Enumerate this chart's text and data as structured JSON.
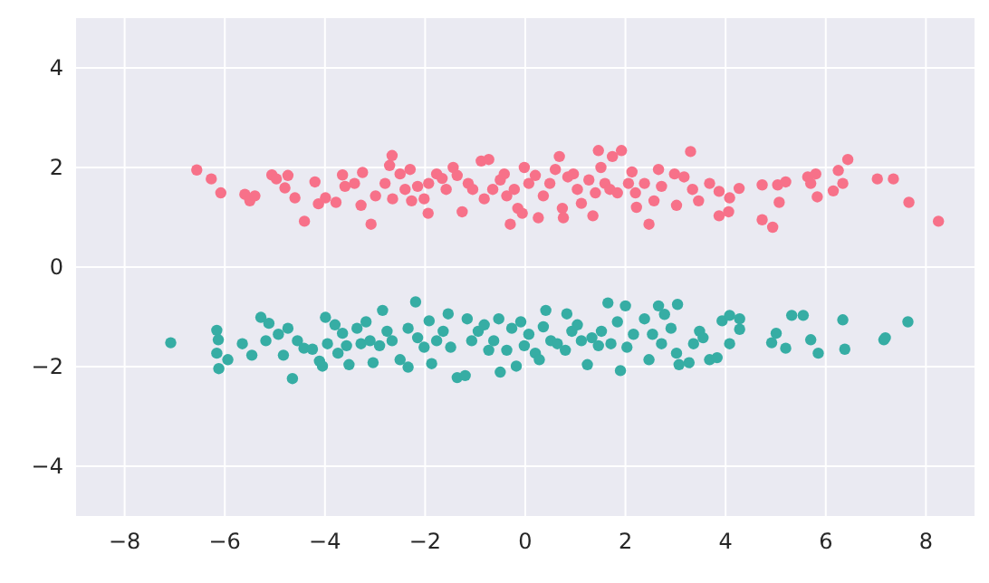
{
  "chart_data": {
    "type": "scatter",
    "xlim": [
      -8.97,
      8.97
    ],
    "ylim": [
      -5,
      5
    ],
    "xticks": [
      {
        "value": -8,
        "label": "−8"
      },
      {
        "value": -6,
        "label": "−6"
      },
      {
        "value": -4,
        "label": "−4"
      },
      {
        "value": -2,
        "label": "−2"
      },
      0,
      2,
      4,
      6,
      8
    ],
    "yticks": [
      {
        "value": -4,
        "label": "−4"
      },
      {
        "value": -2,
        "label": "−2"
      },
      0,
      2,
      4
    ],
    "grid": true,
    "marker": "circle",
    "series": [
      {
        "color": "#f77189",
        "x": [
          -6.56,
          -6.27,
          -6.08,
          -5.6,
          -5.5,
          -5.4,
          -5.06,
          -4.97,
          -4.74,
          -4.8,
          -4.6,
          -4.41,
          -4.2,
          -4.13,
          -3.99,
          -3.78,
          -3.65,
          -3.6,
          -3.41,
          -3.25,
          -3.28,
          -3.08,
          -2.99,
          -2.8,
          -2.71,
          -2.66,
          -2.65,
          -2.5,
          -2.4,
          -2.3,
          -2.27,
          -2.15,
          -2.02,
          -1.94,
          -1.93,
          -1.77,
          -1.66,
          -1.58,
          -1.44,
          -1.36,
          -1.26,
          -1.14,
          -1.05,
          -0.88,
          -0.73,
          -0.82,
          -0.65,
          -0.5,
          -0.42,
          -0.37,
          -0.3,
          -0.22,
          -0.15,
          -0.06,
          -0.02,
          0.07,
          0.2,
          0.26,
          0.36,
          0.49,
          0.6,
          0.68,
          0.74,
          0.76,
          0.85,
          0.96,
          1.04,
          1.12,
          1.27,
          1.35,
          1.4,
          1.46,
          1.51,
          1.59,
          1.69,
          1.74,
          1.84,
          1.92,
          2.06,
          2.13,
          2.2,
          2.22,
          2.38,
          2.47,
          2.57,
          2.66,
          2.72,
          2.98,
          3.02,
          3.17,
          3.3,
          3.34,
          3.46,
          3.68,
          3.87,
          3.87,
          4.06,
          4.08,
          4.27,
          4.73,
          4.73,
          4.94,
          5.04,
          5.07,
          5.2,
          5.64,
          5.7,
          5.8,
          5.83,
          6.15,
          6.25,
          6.34,
          6.44,
          7.03,
          7.35,
          7.66,
          8.25
        ],
        "values": [
          1.95,
          1.77,
          1.49,
          1.46,
          1.33,
          1.43,
          1.85,
          1.77,
          1.84,
          1.59,
          1.39,
          0.92,
          1.71,
          1.27,
          1.39,
          1.3,
          1.85,
          1.62,
          1.68,
          1.9,
          1.24,
          0.86,
          1.43,
          1.68,
          2.04,
          2.24,
          1.37,
          1.87,
          1.56,
          1.96,
          1.33,
          1.62,
          1.37,
          1.08,
          1.68,
          1.87,
          1.78,
          1.56,
          2.0,
          1.84,
          1.11,
          1.68,
          1.56,
          2.13,
          2.16,
          1.37,
          1.56,
          1.75,
          1.87,
          1.43,
          0.86,
          1.56,
          1.18,
          1.08,
          2.0,
          1.68,
          1.84,
          0.99,
          1.43,
          1.68,
          1.96,
          2.22,
          1.18,
          0.99,
          1.81,
          1.87,
          1.56,
          1.28,
          1.75,
          1.03,
          1.49,
          2.34,
          2.0,
          1.68,
          1.56,
          2.22,
          1.49,
          2.34,
          1.68,
          1.91,
          1.49,
          1.2,
          1.68,
          0.86,
          1.33,
          1.96,
          1.62,
          1.87,
          1.24,
          1.81,
          2.32,
          1.56,
          1.33,
          1.68,
          1.52,
          1.03,
          1.11,
          1.39,
          1.58,
          1.65,
          0.95,
          0.8,
          1.65,
          1.3,
          1.71,
          1.81,
          1.68,
          1.87,
          1.41,
          1.53,
          1.94,
          1.68,
          2.16,
          1.77,
          1.77,
          1.3,
          0.92
        ]
      },
      {
        "color": "#36ada4",
        "x": [
          -7.08,
          -6.16,
          -6.13,
          -6.16,
          -6.12,
          -5.94,
          -5.65,
          -5.46,
          -5.28,
          -5.12,
          -5.18,
          -4.93,
          -4.83,
          -4.74,
          -4.65,
          -4.55,
          -4.42,
          -4.25,
          -4.11,
          -4.05,
          -3.99,
          -3.95,
          -3.8,
          -3.74,
          -3.65,
          -3.57,
          -3.52,
          -3.36,
          -3.28,
          -3.18,
          -3.1,
          -3.04,
          -2.91,
          -2.85,
          -2.76,
          -2.66,
          -2.5,
          -2.34,
          -2.34,
          -2.19,
          -2.15,
          -2.02,
          -1.92,
          -1.87,
          -1.77,
          -1.64,
          -1.54,
          -1.49,
          -1.36,
          -1.2,
          -1.16,
          -1.07,
          -0.94,
          -0.82,
          -0.73,
          -0.63,
          -0.5,
          -0.53,
          -0.37,
          -0.27,
          -0.18,
          -0.09,
          -0.02,
          0.07,
          0.2,
          0.28,
          0.36,
          0.41,
          0.51,
          0.64,
          0.8,
          0.83,
          0.93,
          1.04,
          1.12,
          1.24,
          1.33,
          1.46,
          1.52,
          1.65,
          1.71,
          1.84,
          1.9,
          2.0,
          2.03,
          2.16,
          2.38,
          2.47,
          2.54,
          2.66,
          2.72,
          2.78,
          2.91,
          3.02,
          3.04,
          3.07,
          3.27,
          3.36,
          3.48,
          3.55,
          3.68,
          3.83,
          3.93,
          4.08,
          4.08,
          4.28,
          4.28,
          4.92,
          5.01,
          5.2,
          5.32,
          5.55,
          5.7,
          5.85,
          6.34,
          6.38,
          7.16,
          7.19,
          7.64
        ],
        "values": [
          -1.52,
          -1.27,
          -1.46,
          -1.73,
          -2.04,
          -1.86,
          -1.54,
          -1.77,
          -1.01,
          -1.13,
          -1.48,
          -1.35,
          -1.77,
          -1.23,
          -2.24,
          -1.48,
          -1.63,
          -1.65,
          -1.89,
          -1.99,
          -1.01,
          -1.54,
          -1.16,
          -1.73,
          -1.33,
          -1.58,
          -1.96,
          -1.23,
          -1.54,
          -1.1,
          -1.48,
          -1.92,
          -1.58,
          -0.87,
          -1.29,
          -1.48,
          -1.86,
          -2.01,
          -1.23,
          -0.7,
          -1.42,
          -1.61,
          -1.08,
          -1.94,
          -1.48,
          -1.29,
          -0.94,
          -1.61,
          -2.22,
          -2.18,
          -1.04,
          -1.48,
          -1.29,
          -1.16,
          -1.67,
          -1.48,
          -2.11,
          -1.04,
          -1.67,
          -1.23,
          -1.99,
          -1.1,
          -1.58,
          -1.35,
          -1.73,
          -1.86,
          -1.2,
          -0.87,
          -1.48,
          -1.54,
          -1.67,
          -0.94,
          -1.29,
          -1.16,
          -1.48,
          -1.96,
          -1.42,
          -1.58,
          -1.29,
          -0.72,
          -1.54,
          -1.1,
          -2.08,
          -0.78,
          -1.61,
          -1.35,
          -1.04,
          -1.86,
          -1.35,
          -0.78,
          -1.54,
          -0.95,
          -1.23,
          -1.73,
          -0.75,
          -1.96,
          -1.92,
          -1.54,
          -1.29,
          -1.42,
          -1.86,
          -1.82,
          -1.08,
          -1.54,
          -0.97,
          -1.04,
          -1.25,
          -1.52,
          -1.33,
          -1.63,
          -0.97,
          -0.97,
          -1.46,
          -1.73,
          -1.06,
          -1.65,
          -1.46,
          -1.42,
          -1.1
        ]
      }
    ]
  }
}
